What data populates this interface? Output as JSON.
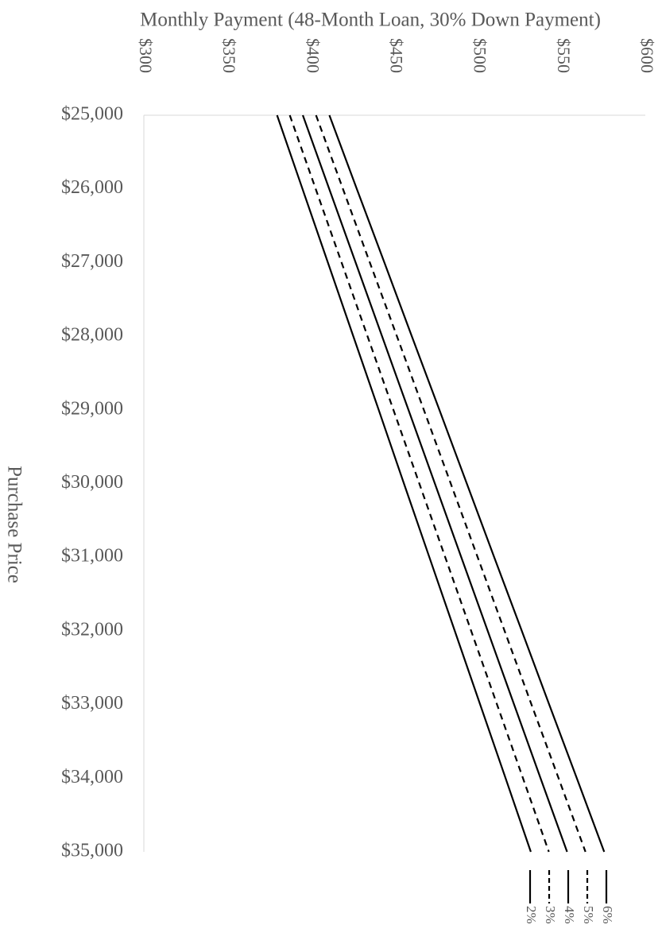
{
  "chart_data": {
    "type": "line",
    "title": "Monthly Payment (48-Month Loan, 30% Down Payment)",
    "x_label": "Purchase Price",
    "x": [
      25000,
      26000,
      27000,
      28000,
      29000,
      30000,
      31000,
      32000,
      33000,
      34000,
      35000
    ],
    "xlim": [
      25000,
      35000
    ],
    "xticks": [
      {
        "value": 25000,
        "label": "$25,000"
      },
      {
        "value": 26000,
        "label": "$26,000"
      },
      {
        "value": 27000,
        "label": "$27,000"
      },
      {
        "value": 28000,
        "label": "$28,000"
      },
      {
        "value": 29000,
        "label": "$29,000"
      },
      {
        "value": 30000,
        "label": "$30,000"
      },
      {
        "value": 31000,
        "label": "$31,000"
      },
      {
        "value": 32000,
        "label": "$32,000"
      },
      {
        "value": 33000,
        "label": "$33,000"
      },
      {
        "value": 34000,
        "label": "$34,000"
      },
      {
        "value": 35000,
        "label": "$35,000"
      }
    ],
    "ylim": [
      300,
      600
    ],
    "yticks": [
      {
        "value": 300,
        "label": "$300"
      },
      {
        "value": 350,
        "label": "$350"
      },
      {
        "value": 400,
        "label": "$400"
      },
      {
        "value": 450,
        "label": "$450"
      },
      {
        "value": 500,
        "label": "$500"
      },
      {
        "value": 550,
        "label": "$550"
      },
      {
        "value": 600,
        "label": "$600"
      }
    ],
    "grid": false,
    "legend": "bottom",
    "series": [
      {
        "name": "2%",
        "color": "#000000",
        "dashed": false,
        "values": [
          379.7,
          394.9,
          410.1,
          425.3,
          440.5,
          455.6,
          470.8,
          486.0,
          501.2,
          516.4,
          531.5
        ]
      },
      {
        "name": "3%",
        "color": "#000000",
        "dashed": true,
        "values": [
          387.3,
          402.8,
          418.3,
          433.8,
          449.3,
          464.8,
          480.3,
          495.8,
          511.3,
          526.8,
          542.3
        ]
      },
      {
        "name": "4%",
        "color": "#000000",
        "dashed": false,
        "values": [
          395.1,
          410.9,
          426.7,
          442.5,
          458.3,
          474.1,
          489.9,
          505.7,
          521.5,
          537.3,
          553.2
        ]
      },
      {
        "name": "5%",
        "color": "#000000",
        "dashed": true,
        "values": [
          403.0,
          419.1,
          435.2,
          451.4,
          467.5,
          483.6,
          499.7,
          515.8,
          531.9,
          548.1,
          564.2
        ]
      },
      {
        "name": "6%",
        "color": "#000000",
        "dashed": false,
        "values": [
          411.0,
          427.4,
          443.9,
          460.3,
          476.8,
          493.2,
          509.6,
          526.1,
          542.5,
          559.0,
          575.4
        ]
      }
    ]
  }
}
